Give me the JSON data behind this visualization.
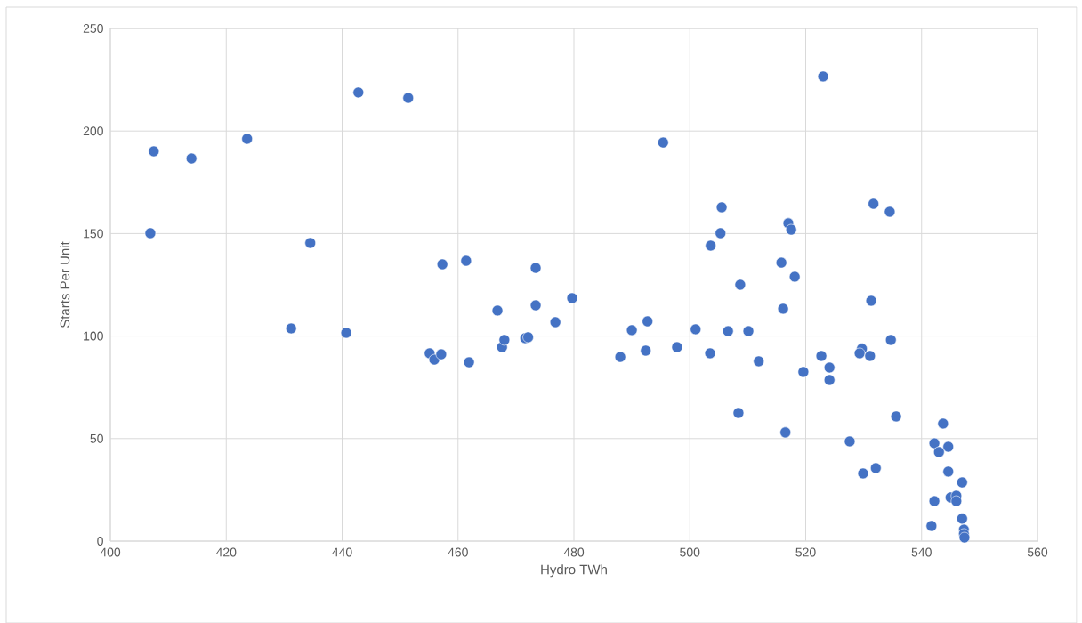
{
  "chart_data": {
    "type": "scatter",
    "xlabel": "Hydro TWh",
    "ylabel": "Starts Per Unit",
    "xlim": [
      400,
      560
    ],
    "xticks": [
      400,
      420,
      440,
      460,
      480,
      500,
      520,
      540,
      560
    ],
    "ylim": [
      0,
      250
    ],
    "yticks": [
      0,
      50,
      100,
      150,
      200,
      250
    ],
    "grid": true,
    "marker": "circle",
    "series": [
      {
        "color": "#4472c4",
        "x": [
          406.9,
          407.5,
          414.0,
          423.6,
          431.2,
          434.5,
          440.7,
          442.8,
          451.4,
          455.1,
          455.9,
          457.1,
          457.3,
          461.9,
          461.4,
          466.8,
          467.6,
          468.0,
          471.6,
          472.1,
          473.4,
          473.4,
          476.8,
          479.7,
          488.0,
          490.0,
          492.7,
          492.4,
          497.8,
          495.4,
          505.5,
          505.3,
          503.6,
          501.0,
          503.5,
          506.6,
          510.1,
          508.7,
          511.9,
          508.4,
          516.5,
          517.0,
          517.5,
          515.8,
          518.1,
          516.1,
          519.6,
          522.7,
          524.1,
          524.1,
          523.0,
          529.7,
          529.3,
          531.1,
          531.3,
          531.7,
          534.5,
          534.7,
          535.6,
          527.6,
          529.9,
          532.1,
          543.7,
          542.2,
          544.6,
          543.0,
          544.6,
          547.0,
          545.0,
          546.0,
          546.0,
          542.2,
          547.0,
          541.7,
          547.3,
          547.3,
          547.4
        ],
        "values": [
          150.2,
          190.1,
          186.6,
          196.2,
          103.7,
          145.4,
          101.6,
          218.8,
          216.1,
          91.6,
          88.5,
          91.1,
          135.0,
          87.2,
          136.7,
          112.4,
          94.6,
          98.1,
          99.0,
          99.4,
          133.2,
          115.0,
          106.8,
          118.5,
          89.8,
          102.9,
          107.2,
          92.9,
          94.6,
          194.4,
          162.8,
          150.2,
          144.1,
          103.3,
          91.6,
          102.4,
          102.4,
          125.0,
          87.7,
          62.5,
          53.0,
          155.0,
          151.9,
          135.8,
          128.9,
          113.3,
          82.5,
          90.3,
          84.6,
          78.6,
          226.6,
          93.8,
          91.6,
          90.3,
          117.2,
          164.5,
          160.6,
          98.1,
          60.8,
          48.6,
          33.0,
          35.6,
          57.3,
          47.7,
          46.0,
          43.4,
          33.9,
          28.6,
          21.3,
          22.1,
          19.5,
          19.5,
          10.9,
          7.4,
          5.6,
          3.5,
          1.7
        ]
      }
    ]
  }
}
